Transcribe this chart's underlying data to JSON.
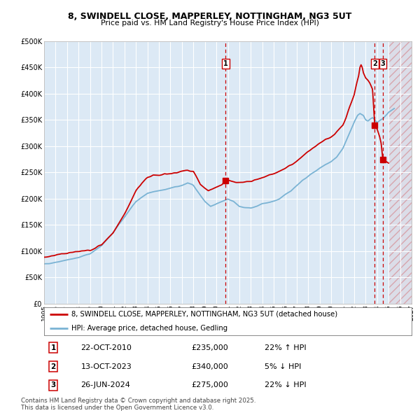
{
  "title_line1": "8, SWINDELL CLOSE, MAPPERLEY, NOTTINGHAM, NG3 5UT",
  "title_line2": "Price paid vs. HM Land Registry's House Price Index (HPI)",
  "background_color": "#ffffff",
  "plot_background_color": "#dce9f5",
  "grid_color": "#ffffff",
  "hpi_line_color": "#7ab3d4",
  "price_line_color": "#cc0000",
  "xmin": 1995.0,
  "xmax": 2027.0,
  "ymin": 0,
  "ymax": 500000,
  "yticks": [
    0,
    50000,
    100000,
    150000,
    200000,
    250000,
    300000,
    350000,
    400000,
    450000,
    500000
  ],
  "xticks": [
    1995,
    1996,
    1997,
    1998,
    1999,
    2000,
    2001,
    2002,
    2003,
    2004,
    2005,
    2006,
    2007,
    2008,
    2009,
    2010,
    2011,
    2012,
    2013,
    2014,
    2015,
    2016,
    2017,
    2018,
    2019,
    2020,
    2021,
    2022,
    2023,
    2024,
    2025,
    2026,
    2027
  ],
  "sale_events": [
    {
      "num": 1,
      "year": 2010.81,
      "price": 235000,
      "label": "22-OCT-2010",
      "price_str": "£235,000",
      "hpi_str": "22% ↑ HPI"
    },
    {
      "num": 2,
      "year": 2023.79,
      "price": 340000,
      "label": "13-OCT-2023",
      "price_str": "£340,000",
      "hpi_str": "5% ↓ HPI"
    },
    {
      "num": 3,
      "year": 2024.49,
      "price": 275000,
      "label": "26-JUN-2024",
      "price_str": "£275,000",
      "hpi_str": "22% ↓ HPI"
    }
  ],
  "legend_label_red": "8, SWINDELL CLOSE, MAPPERLEY, NOTTINGHAM, NG3 5UT (detached house)",
  "legend_label_blue": "HPI: Average price, detached house, Gedling",
  "footnote": "Contains HM Land Registry data © Crown copyright and database right 2025.\nThis data is licensed under the Open Government Licence v3.0.",
  "future_shade_start": 2025.0
}
